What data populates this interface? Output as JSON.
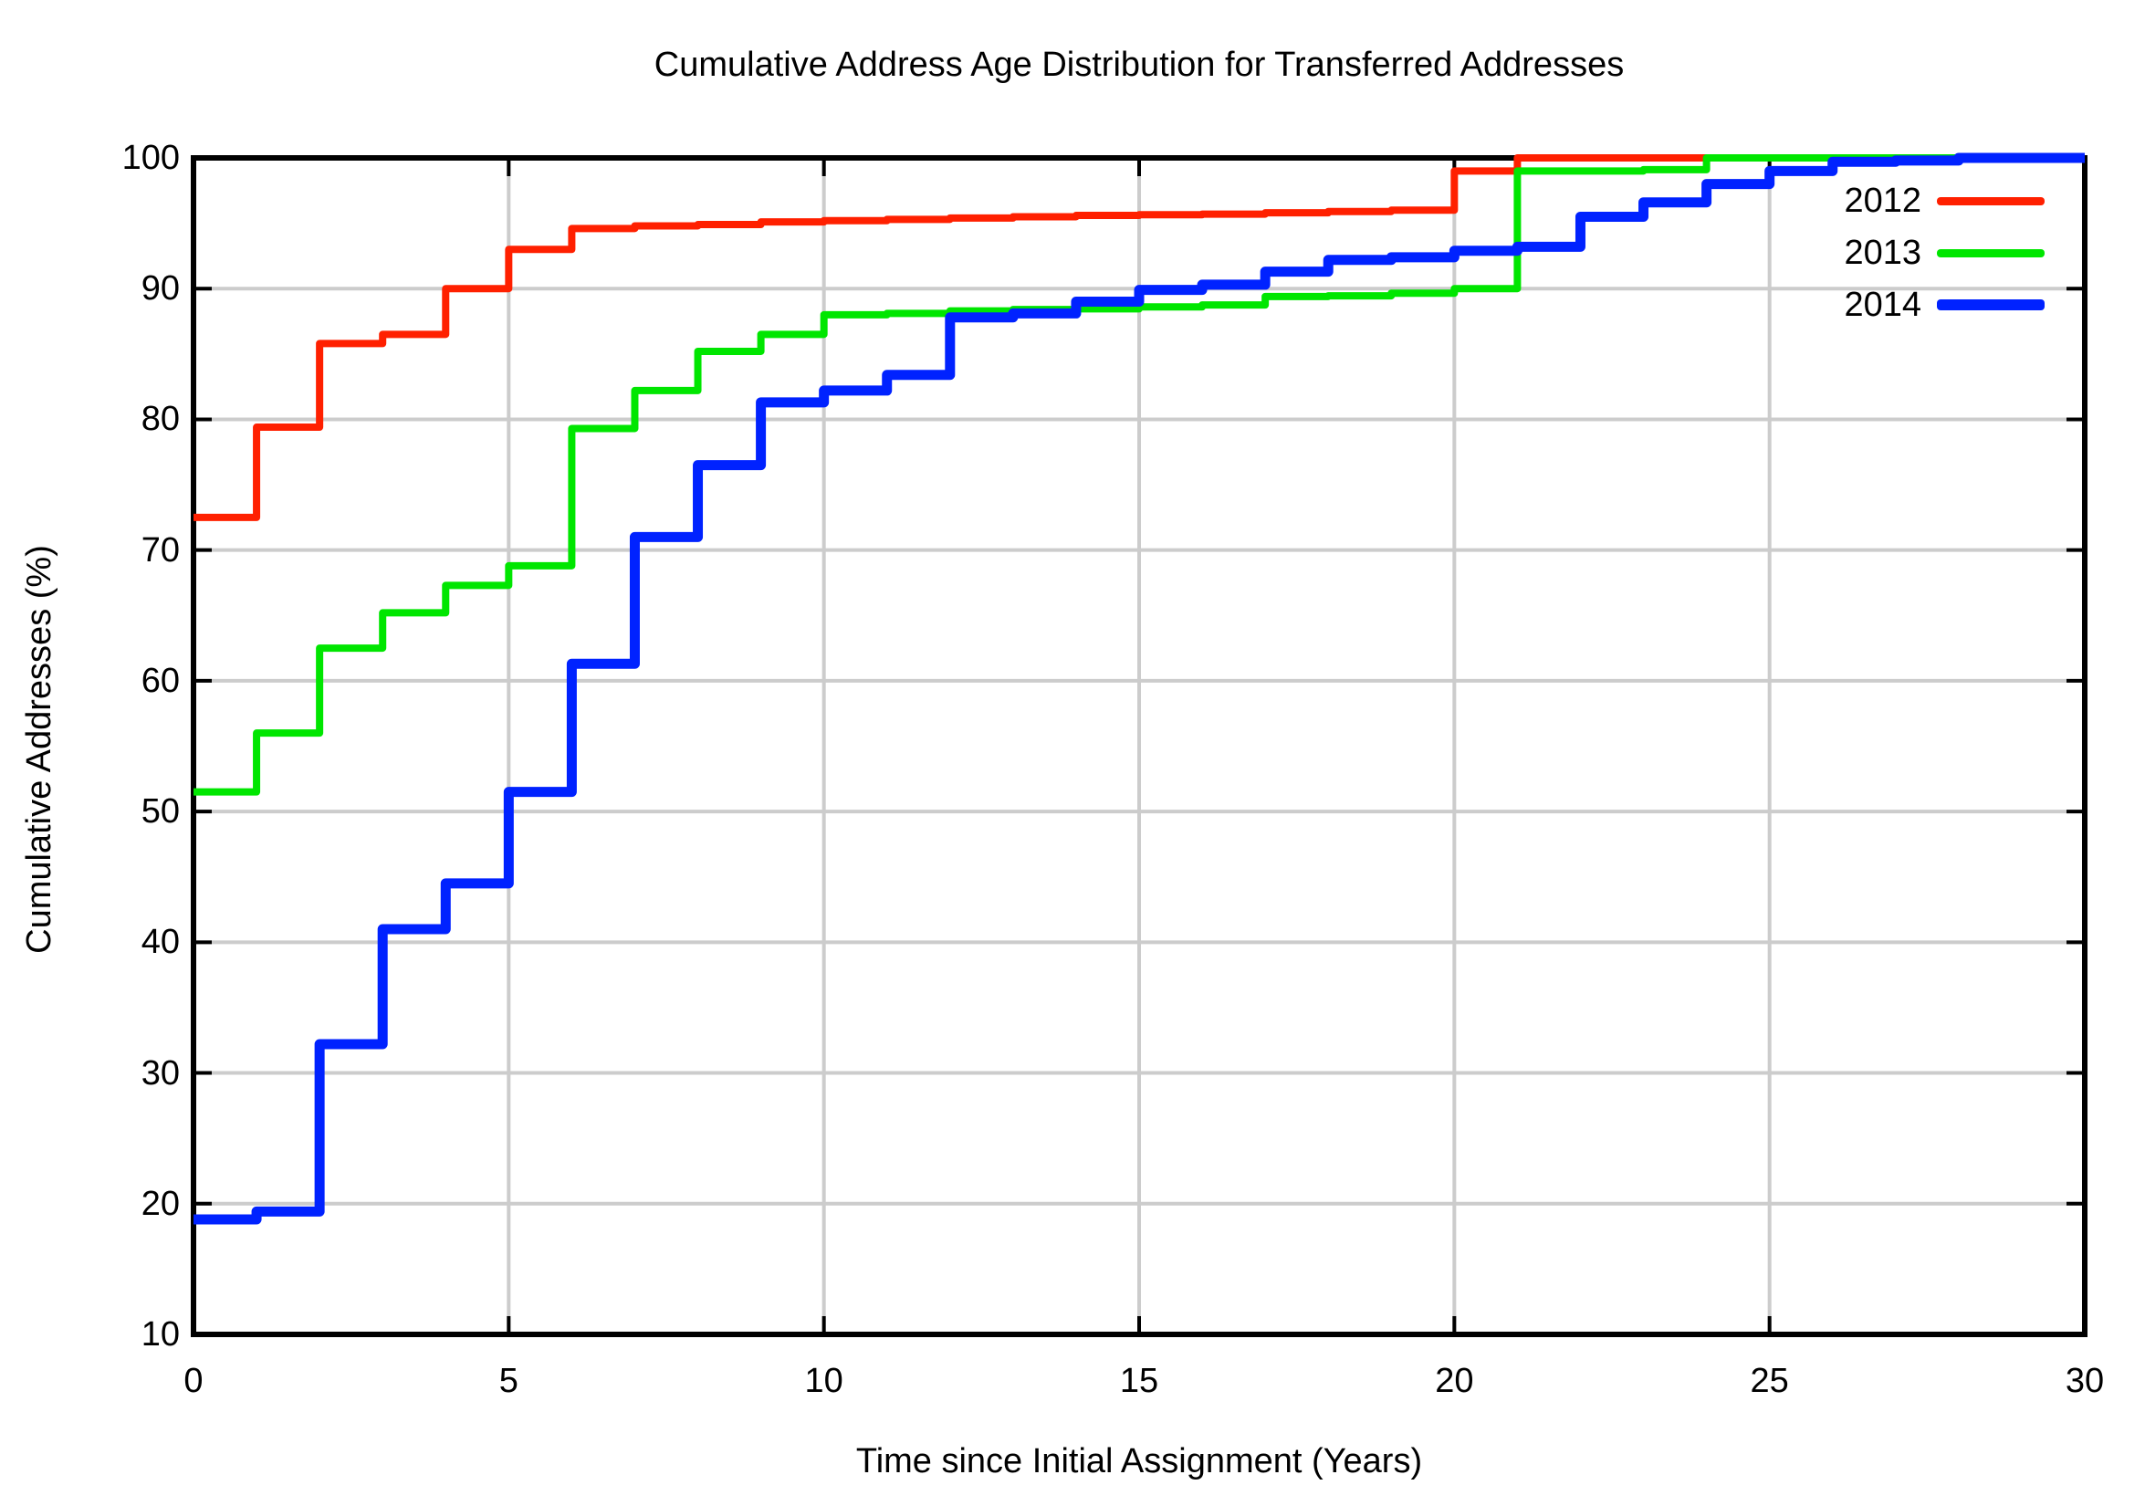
{
  "title": "Cumulative Address Age Distribution for Transferred Addresses",
  "axes": {
    "xlabel": "Time since Initial Assignment (Years)",
    "ylabel": "Cumulative Addresses (%)"
  },
  "legend": {
    "position": "top-right",
    "items": [
      {
        "label": "2012",
        "color": "#ff2000"
      },
      {
        "label": "2013",
        "color": "#00e600"
      },
      {
        "label": "2014",
        "color": "#0022ff"
      }
    ]
  },
  "chart_data": {
    "type": "line",
    "subtype": "step-cdf",
    "title": "Cumulative Address Age Distribution for Transferred Addresses",
    "xlabel": "Time since Initial Assignment (Years)",
    "ylabel": "Cumulative Addresses (%)",
    "xlim": [
      0,
      30
    ],
    "ylim": [
      10,
      100
    ],
    "xticks": [
      0,
      5,
      10,
      15,
      20,
      25,
      30
    ],
    "yticks": [
      10,
      20,
      30,
      40,
      50,
      60,
      70,
      80,
      90,
      100
    ],
    "grid": "on",
    "grid_color": "#cccccc",
    "axis_color": "#000000",
    "legend_position": "top-right",
    "x": [
      0,
      1,
      2,
      3,
      4,
      5,
      6,
      7,
      8,
      9,
      10,
      11,
      12,
      13,
      14,
      15,
      16,
      17,
      18,
      19,
      20,
      21,
      22,
      23,
      24,
      25,
      26,
      27,
      28,
      29,
      30
    ],
    "series": [
      {
        "name": "2012",
        "color": "#ff2000",
        "line_width": 8,
        "values": [
          72.5,
          79.4,
          85.8,
          86.5,
          90,
          93,
          94.6,
          94.8,
          94.9,
          95.1,
          95.2,
          95.3,
          95.4,
          95.5,
          95.6,
          95.65,
          95.7,
          95.8,
          95.9,
          96,
          99,
          100,
          100,
          100,
          100,
          100,
          100,
          100,
          100,
          100,
          100
        ]
      },
      {
        "name": "2013",
        "color": "#00e600",
        "line_width": 8,
        "values": [
          51.5,
          56,
          62.5,
          65.2,
          67.3,
          68.8,
          79.3,
          82.2,
          85.2,
          86.5,
          88,
          88.1,
          88.3,
          88.4,
          88.45,
          88.6,
          88.75,
          89.4,
          89.45,
          89.65,
          90,
          99,
          99,
          99.1,
          100,
          100,
          100,
          100,
          100,
          100,
          100
        ]
      },
      {
        "name": "2014",
        "color": "#0022ff",
        "line_width": 11,
        "values": [
          18.8,
          19.4,
          32.2,
          41,
          44.5,
          51.5,
          61.3,
          71,
          76.5,
          81.3,
          82.2,
          83.4,
          87.8,
          88.1,
          89,
          89.9,
          90.3,
          91.3,
          92.2,
          92.4,
          92.9,
          93.2,
          95.5,
          96.6,
          98,
          99,
          99.7,
          99.8,
          100,
          100,
          100
        ]
      }
    ]
  }
}
